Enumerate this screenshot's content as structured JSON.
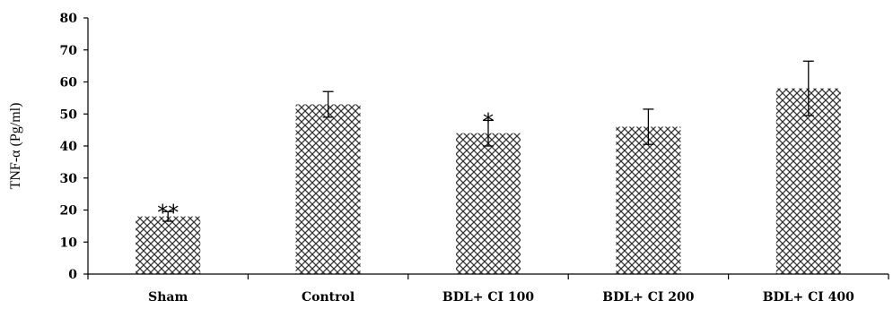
{
  "chart_data": {
    "type": "bar",
    "title": "",
    "xlabel": "",
    "ylabel": "TNF-α (Pg/ml)",
    "ylim": [
      0,
      80
    ],
    "yticks": [
      0,
      10,
      20,
      30,
      40,
      50,
      60,
      70,
      80
    ],
    "grid": false,
    "legend": "none",
    "bar_pattern": "crosshatch",
    "bar_color": "#333333",
    "categories": [
      "Sham",
      "Control",
      "BDL+ CI 100",
      "BDL+ CI 200",
      "BDL+ CI 400"
    ],
    "values": [
      18,
      53,
      44,
      46,
      58
    ],
    "errors": [
      1.5,
      4,
      4,
      5.5,
      8.5
    ],
    "significance": [
      "**",
      "",
      "*",
      "",
      ""
    ]
  }
}
